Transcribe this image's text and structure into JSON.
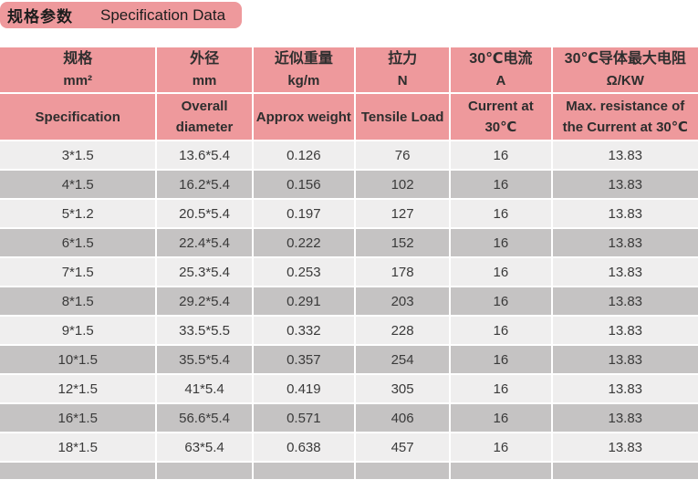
{
  "title": {
    "zh": "规格参数",
    "en": "Specification Data"
  },
  "table": {
    "columns": [
      {
        "zh": "规格",
        "unit": "mm²",
        "en": "Specification"
      },
      {
        "zh": "外径",
        "unit": "mm",
        "en": "Overall diameter"
      },
      {
        "zh": "近似重量",
        "unit": "kg/m",
        "en": "Approx weight"
      },
      {
        "zh": "拉力",
        "unit": "N",
        "en": "Tensile Load"
      },
      {
        "zh": "30℃电流",
        "unit": "A",
        "en": "Current at 30℃"
      },
      {
        "zh": "30℃导体最大电阻",
        "unit": "Ω/KW",
        "en": "Max. resistance of the Current at 30℃"
      }
    ],
    "rows": [
      [
        "3*1.5",
        "13.6*5.4",
        "0.126",
        "76",
        "16",
        "13.83"
      ],
      [
        "4*1.5",
        "16.2*5.4",
        "0.156",
        "102",
        "16",
        "13.83"
      ],
      [
        "5*1.2",
        "20.5*5.4",
        "0.197",
        "127",
        "16",
        "13.83"
      ],
      [
        "6*1.5",
        "22.4*5.4",
        "0.222",
        "152",
        "16",
        "13.83"
      ],
      [
        "7*1.5",
        "25.3*5.4",
        "0.253",
        "178",
        "16",
        "13.83"
      ],
      [
        "8*1.5",
        "29.2*5.4",
        "0.291",
        "203",
        "16",
        "13.83"
      ],
      [
        "9*1.5",
        "33.5*5.5",
        "0.332",
        "228",
        "16",
        "13.83"
      ],
      [
        "10*1.5",
        "35.5*5.4",
        "0.357",
        "254",
        "16",
        "13.83"
      ],
      [
        "12*1.5",
        "41*5.4",
        "0.419",
        "305",
        "16",
        "13.83"
      ],
      [
        "16*1.5",
        "56.6*5.4",
        "0.571",
        "406",
        "16",
        "13.83"
      ],
      [
        "18*1.5",
        "63*5.4",
        "0.638",
        "457",
        "16",
        "13.83"
      ]
    ]
  },
  "colors": {
    "accent_pink": "#ee999c",
    "row_light": "#efeeee",
    "row_dark": "#c5c3c3",
    "text": "#3a3a3a"
  }
}
